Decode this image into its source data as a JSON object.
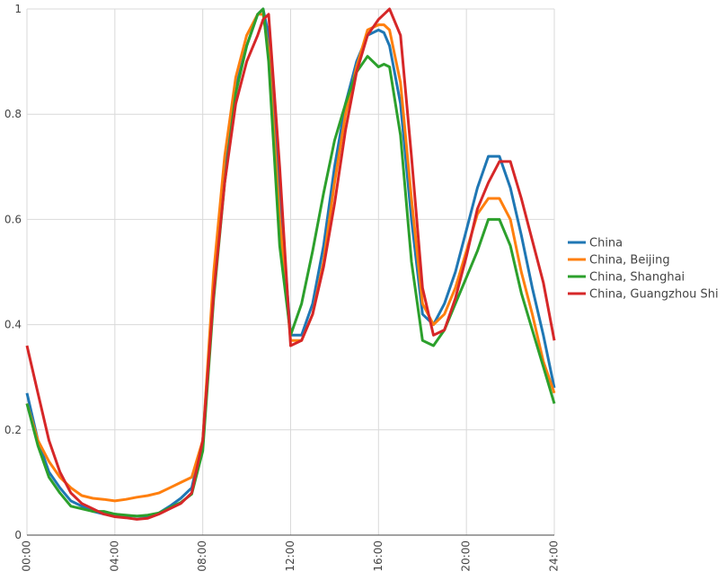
{
  "chart_data": {
    "type": "line",
    "title": "",
    "xlabel": "",
    "ylabel": "",
    "xlim": [
      0,
      24
    ],
    "ylim": [
      0,
      1
    ],
    "grid": true,
    "legend_position": "right",
    "x_ticks": [
      {
        "value": 0,
        "label": "00:00"
      },
      {
        "value": 4,
        "label": "04:00"
      },
      {
        "value": 8,
        "label": "08:00"
      },
      {
        "value": 12,
        "label": "12:00"
      },
      {
        "value": 16,
        "label": "16:00"
      },
      {
        "value": 20,
        "label": "20:00"
      },
      {
        "value": 24,
        "label": "24:00"
      }
    ],
    "y_ticks": [
      {
        "value": 0,
        "label": "0"
      },
      {
        "value": 0.2,
        "label": "0.2"
      },
      {
        "value": 0.4,
        "label": "0.4"
      },
      {
        "value": 0.6,
        "label": "0.6"
      },
      {
        "value": 0.8,
        "label": "0.8"
      },
      {
        "value": 1,
        "label": "1"
      }
    ],
    "x": [
      0,
      0.5,
      1,
      1.5,
      2,
      2.5,
      3,
      3.5,
      4,
      4.5,
      5,
      5.5,
      6,
      6.5,
      7,
      7.5,
      8,
      8.5,
      9,
      9.5,
      10,
      10.5,
      10.75,
      11,
      11.5,
      12,
      12.5,
      13,
      13.5,
      14,
      14.5,
      15,
      15.5,
      16,
      16.25,
      16.5,
      17,
      17.5,
      18,
      18.5,
      19,
      19.5,
      20,
      20.5,
      21,
      21.5,
      22,
      22.5,
      23,
      23.5,
      24
    ],
    "series": [
      {
        "name": "China",
        "color": "#1f77b4",
        "values": [
          0.27,
          0.18,
          0.12,
          0.09,
          0.065,
          0.055,
          0.045,
          0.04,
          0.04,
          0.037,
          0.036,
          0.036,
          0.042,
          0.055,
          0.07,
          0.09,
          0.18,
          0.48,
          0.7,
          0.85,
          0.93,
          0.99,
          1.0,
          0.95,
          0.65,
          0.38,
          0.38,
          0.44,
          0.55,
          0.7,
          0.82,
          0.9,
          0.95,
          0.96,
          0.955,
          0.93,
          0.82,
          0.6,
          0.42,
          0.4,
          0.44,
          0.5,
          0.58,
          0.66,
          0.72,
          0.72,
          0.66,
          0.57,
          0.47,
          0.38,
          0.28
        ]
      },
      {
        "name": "China, Beijing",
        "color": "#ff7f0e",
        "values": [
          0.25,
          0.18,
          0.14,
          0.11,
          0.09,
          0.075,
          0.07,
          0.068,
          0.065,
          0.068,
          0.072,
          0.075,
          0.08,
          0.09,
          0.1,
          0.11,
          0.18,
          0.5,
          0.72,
          0.87,
          0.95,
          0.99,
          0.99,
          0.92,
          0.6,
          0.37,
          0.37,
          0.42,
          0.52,
          0.67,
          0.8,
          0.89,
          0.96,
          0.97,
          0.97,
          0.96,
          0.86,
          0.64,
          0.44,
          0.4,
          0.42,
          0.47,
          0.54,
          0.61,
          0.64,
          0.64,
          0.6,
          0.5,
          0.42,
          0.33,
          0.27
        ]
      },
      {
        "name": "China, Shanghai",
        "color": "#2ca02c",
        "values": [
          0.25,
          0.17,
          0.11,
          0.08,
          0.055,
          0.05,
          0.045,
          0.045,
          0.04,
          0.038,
          0.036,
          0.038,
          0.042,
          0.052,
          0.062,
          0.078,
          0.16,
          0.45,
          0.67,
          0.84,
          0.93,
          0.99,
          1.0,
          0.9,
          0.55,
          0.38,
          0.44,
          0.54,
          0.65,
          0.75,
          0.82,
          0.88,
          0.91,
          0.89,
          0.895,
          0.89,
          0.76,
          0.52,
          0.37,
          0.36,
          0.39,
          0.44,
          0.49,
          0.54,
          0.6,
          0.6,
          0.55,
          0.46,
          0.39,
          0.32,
          0.25
        ]
      },
      {
        "name": "China, Guangzhou Shi",
        "color": "#d62728",
        "values": [
          0.36,
          0.27,
          0.18,
          0.12,
          0.08,
          0.06,
          0.05,
          0.04,
          0.035,
          0.033,
          0.03,
          0.032,
          0.04,
          0.05,
          0.06,
          0.08,
          0.18,
          0.46,
          0.67,
          0.82,
          0.9,
          0.95,
          0.98,
          0.99,
          0.7,
          0.36,
          0.37,
          0.42,
          0.51,
          0.63,
          0.77,
          0.88,
          0.95,
          0.98,
          0.99,
          1.0,
          0.95,
          0.72,
          0.47,
          0.38,
          0.39,
          0.45,
          0.53,
          0.62,
          0.67,
          0.71,
          0.71,
          0.64,
          0.56,
          0.48,
          0.37
        ]
      }
    ]
  }
}
